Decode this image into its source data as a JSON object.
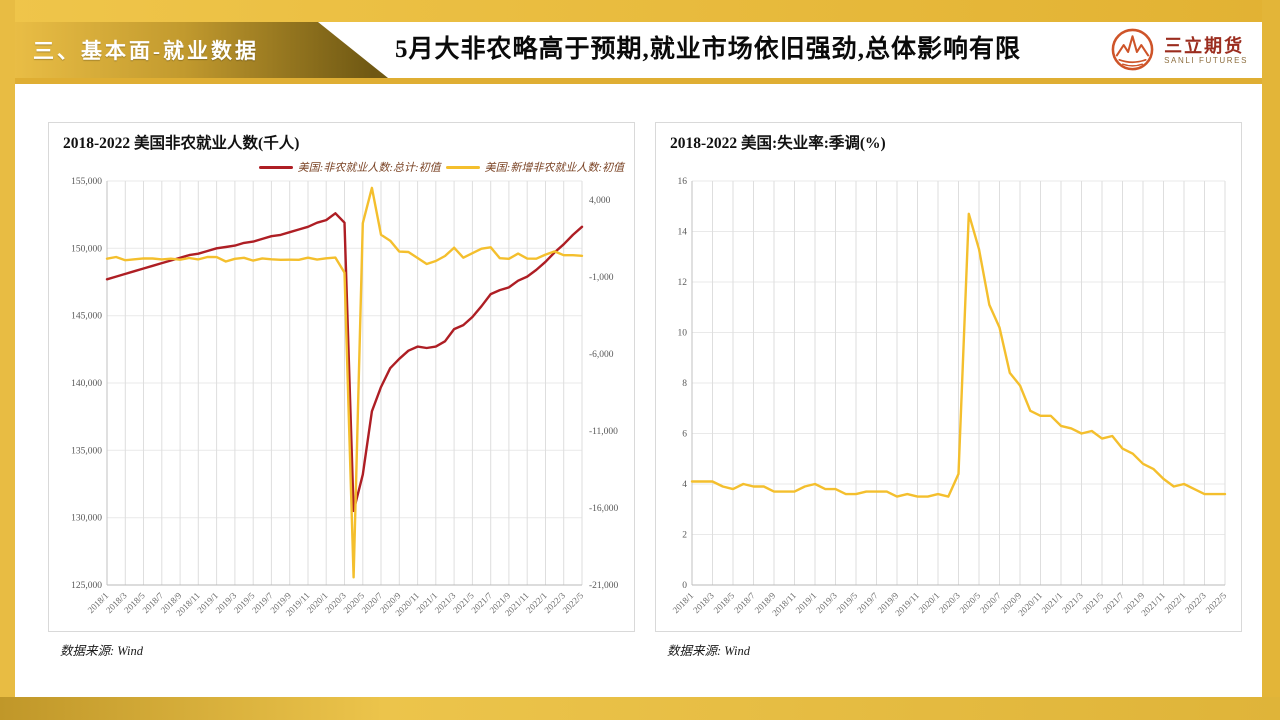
{
  "colors": {
    "frame_gold": "#E6B93E",
    "banner_dark": "#6F5813",
    "series_red": "#AE1E24",
    "series_yellow": "#F4BF2D",
    "logo_accent": "#CE5429"
  },
  "header": {
    "section_label": "三、基本面-就业数据",
    "title": "5月大非农略高于预期,就业市场依旧强劲,总体影响有限",
    "logo": {
      "name": "三立期货",
      "name_en": "SANLI FUTURES"
    }
  },
  "panels": [
    {
      "source": "数据来源: Wind"
    },
    {
      "source": "数据来源: Wind"
    }
  ],
  "chart_data": [
    {
      "type": "line",
      "title": "2018-2022 美国非农就业人数(千人)",
      "x_count": 53,
      "x_range": "2018/1 - 2022/5 monthly",
      "x_tick_labels": [
        "2018/1",
        "2018/3",
        "2018/5",
        "2018/7",
        "2018/9",
        "2018/11",
        "2019/1",
        "2019/3",
        "2019/5",
        "2019/7",
        "2019/9",
        "2019/11",
        "2020/1",
        "2020/3",
        "2020/5",
        "2020/7",
        "2020/9",
        "2020/11",
        "2021/1",
        "2021/3",
        "2021/5",
        "2021/7",
        "2021/9",
        "2021/11",
        "2022/1",
        "2022/3",
        "2022/5"
      ],
      "axes": {
        "left": {
          "domain": [
            125000,
            155000
          ],
          "ticks": [
            155000,
            150000,
            145000,
            140000,
            135000,
            130000,
            125000
          ],
          "format": "comma"
        },
        "right": {
          "domain": [
            -21000,
            5250
          ],
          "ticks": [
            4000,
            -1000,
            -6000,
            -11000,
            -16000,
            -21000
          ],
          "format": "comma"
        }
      },
      "grid": "both",
      "legend_position": "top-right",
      "series": [
        {
          "name": "美国:非农就业人数:总计:初值",
          "color": "#AE1E24",
          "axis": "left",
          "values": [
            147700,
            147900,
            148100,
            148300,
            148500,
            148700,
            148900,
            149100,
            149300,
            149500,
            149600,
            149800,
            150000,
            150100,
            150200,
            150400,
            150500,
            150700,
            150900,
            151000,
            151200,
            151400,
            151600,
            151900,
            152100,
            152600,
            151900,
            130500,
            133200,
            137900,
            139700,
            141100,
            141800,
            142400,
            142700,
            142600,
            142700,
            143100,
            144000,
            144300,
            144900,
            145700,
            146600,
            146900,
            147100,
            147600,
            147900,
            148400,
            149000,
            149700,
            150300,
            151000,
            151600
          ]
        },
        {
          "name": "美国:新增非农就业人数:初值",
          "color": "#F4BF2D",
          "axis": "right",
          "values": [
            200,
            313,
            103,
            164,
            223,
            213,
            157,
            201,
            134,
            250,
            155,
            312,
            304,
            20,
            196,
            263,
            75,
            224,
            164,
            130,
            136,
            128,
            266,
            145,
            225,
            273,
            -701,
            -20500,
            2509,
            4800,
            1763,
            1371,
            661,
            638,
            245,
            -140,
            49,
            379,
            916,
            266,
            559,
            850,
            943,
            235,
            194,
            531,
            210,
            199,
            467,
            678,
            431,
            428,
            390
          ]
        }
      ]
    },
    {
      "type": "line",
      "title": "2018-2022 美国:失业率:季调(%)",
      "x_count": 53,
      "x_range": "2018/1 - 2022/5 monthly",
      "x_tick_labels": [
        "2018/1",
        "2018/3",
        "2018/5",
        "2018/7",
        "2018/9",
        "2018/11",
        "2019/1",
        "2019/3",
        "2019/5",
        "2019/7",
        "2019/9",
        "2019/11",
        "2020/1",
        "2020/3",
        "2020/5",
        "2020/7",
        "2020/9",
        "2020/11",
        "2021/1",
        "2021/3",
        "2021/5",
        "2021/7",
        "2021/9",
        "2021/11",
        "2022/1",
        "2022/3",
        "2022/5"
      ],
      "axes": {
        "left": {
          "domain": [
            0,
            16
          ],
          "ticks": [
            16,
            14,
            12,
            10,
            8,
            6,
            4,
            2,
            0
          ],
          "format": "plain"
        }
      },
      "grid": "both",
      "legend_position": "none",
      "series": [
        {
          "name": "美国:失业率:季调",
          "color": "#F4BF2D",
          "axis": "left",
          "values": [
            4.1,
            4.1,
            4.1,
            3.9,
            3.8,
            4.0,
            3.9,
            3.9,
            3.7,
            3.7,
            3.7,
            3.9,
            4.0,
            3.8,
            3.8,
            3.6,
            3.6,
            3.7,
            3.7,
            3.7,
            3.5,
            3.6,
            3.5,
            3.5,
            3.6,
            3.5,
            4.4,
            14.7,
            13.3,
            11.1,
            10.2,
            8.4,
            7.9,
            6.9,
            6.7,
            6.7,
            6.3,
            6.2,
            6.0,
            6.1,
            5.8,
            5.9,
            5.4,
            5.2,
            4.8,
            4.6,
            4.2,
            3.9,
            4.0,
            3.8,
            3.6,
            3.6,
            3.6
          ]
        }
      ]
    }
  ]
}
